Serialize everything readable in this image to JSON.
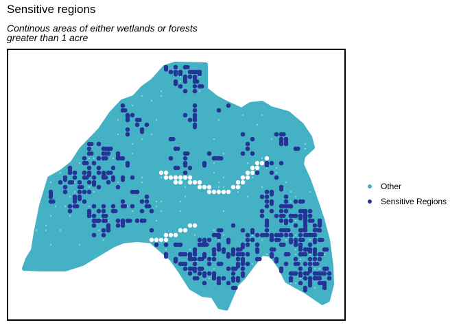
{
  "title": "Sensitive regions",
  "subtitle_line1": "Continous areas of either wetlands or forests",
  "subtitle_line2": "greater than 1 acre",
  "legend": [
    {
      "label": "Other",
      "color": "#45b1c4"
    },
    {
      "label": "Sensitive Regions",
      "color": "#253494"
    }
  ]
}
